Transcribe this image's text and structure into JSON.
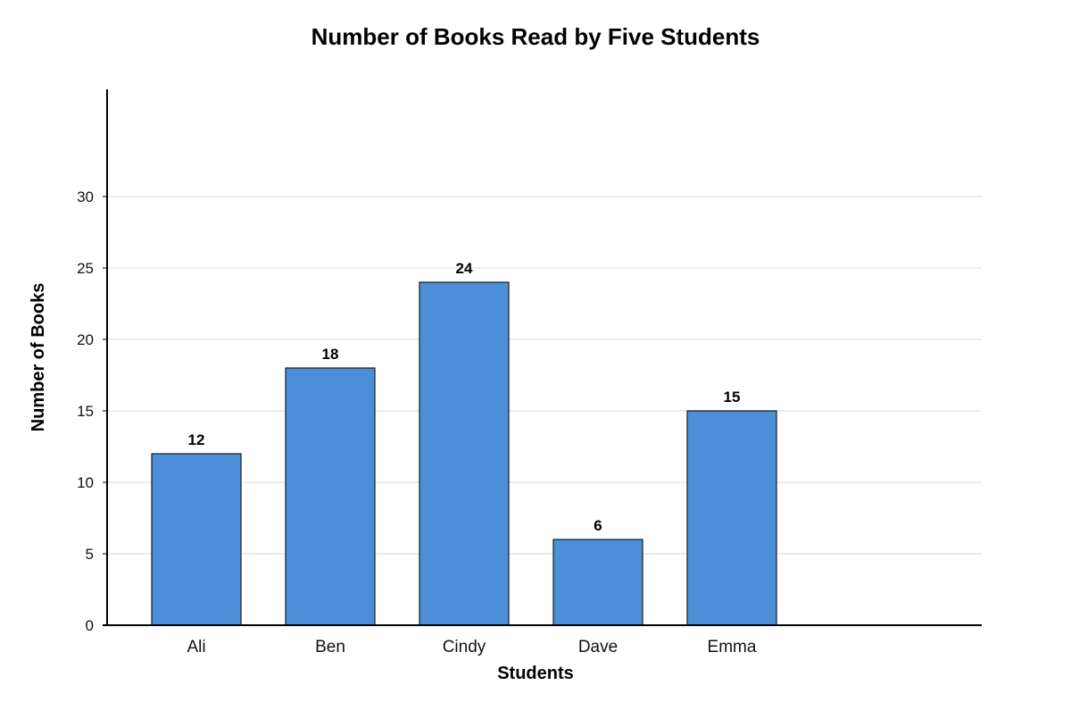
{
  "chart_data": {
    "type": "bar",
    "title": "Number of Books Read by Five Students",
    "xlabel": "Students",
    "ylabel": "Number of Books",
    "categories": [
      "Ali",
      "Ben",
      "Cindy",
      "Dave",
      "Emma"
    ],
    "values": [
      12,
      18,
      24,
      6,
      15
    ],
    "ylim": [
      0,
      37.5
    ],
    "yticks": [
      0,
      5,
      10,
      15,
      20,
      25,
      30
    ],
    "grid": true,
    "legend": "none",
    "data_labels": true,
    "bar_color": "#4a8fd8",
    "bar_edge_color": "#1a1a1a"
  }
}
